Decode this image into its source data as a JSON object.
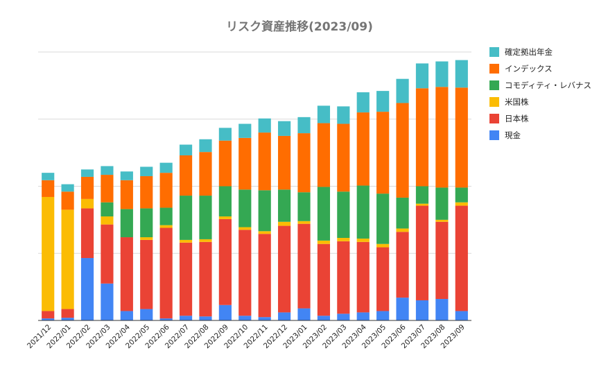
{
  "chart_data": {
    "type": "bar",
    "stacked": true,
    "title": "リスク資産推移(2023/09)",
    "xlabel": "",
    "ylabel": "",
    "y_tick_labels_shown": false,
    "ylim": [
      0,
      400
    ],
    "grid": true,
    "legend_position": "right",
    "categories": [
      "2021/12",
      "2022/01",
      "2022/02",
      "2022/03",
      "2022/04",
      "2022/05",
      "2022/06",
      "2022/07",
      "2022/08",
      "2022/09",
      "2022/10",
      "2022/11",
      "2022/12",
      "2023/01",
      "2023/02",
      "2023/03",
      "2023/04",
      "2023/05",
      "2023/06",
      "2023/07",
      "2023/08",
      "2023/09"
    ],
    "series": [
      {
        "name": "現金",
        "color": "#4285f4",
        "values": [
          3,
          4,
          93,
          55,
          14,
          17,
          3,
          7,
          6,
          23,
          7,
          5,
          12,
          18,
          7,
          10,
          12,
          14,
          34,
          30,
          32,
          14
        ]
      },
      {
        "name": "日本株",
        "color": "#ea4335",
        "values": [
          11,
          13,
          74,
          88,
          110,
          103,
          135,
          109,
          111,
          128,
          128,
          124,
          129,
          126,
          107,
          108,
          105,
          95,
          98,
          141,
          115,
          157
        ]
      },
      {
        "name": "米国株",
        "color": "#fbbc04",
        "values": [
          170,
          148,
          14,
          12,
          0,
          4,
          4,
          4,
          4,
          4,
          4,
          4,
          6,
          4,
          5,
          5,
          5,
          5,
          5,
          3,
          3,
          5
        ]
      },
      {
        "name": "コモディティ・レバナス",
        "color": "#34a853",
        "values": [
          0,
          0,
          0,
          21,
          42,
          43,
          26,
          66,
          65,
          45,
          56,
          61,
          48,
          43,
          80,
          69,
          79,
          75,
          46,
          26,
          48,
          22
        ]
      },
      {
        "name": "インデックス",
        "color": "#ff6d01",
        "values": [
          25,
          27,
          33,
          41,
          43,
          48,
          52,
          60,
          65,
          68,
          77,
          86,
          80,
          88,
          95,
          101,
          109,
          122,
          141,
          146,
          150,
          149
        ]
      },
      {
        "name": "確定拠出年金",
        "color": "#46bdc6",
        "values": [
          11,
          11,
          11,
          13,
          13,
          14,
          15,
          16,
          19,
          19,
          21,
          21,
          22,
          24,
          26,
          26,
          30,
          31,
          36,
          37,
          38,
          41
        ]
      }
    ]
  }
}
